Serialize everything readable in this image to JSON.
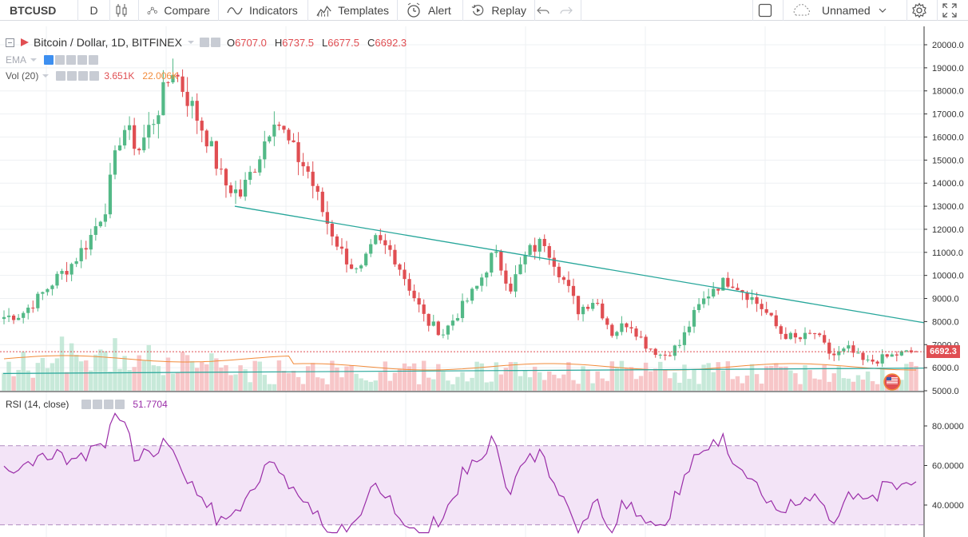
{
  "toolbar": {
    "symbol": "BTCUSD",
    "interval": "D",
    "compare_label": "Compare",
    "indicators_label": "Indicators",
    "templates_label": "Templates",
    "alert_label": "Alert",
    "replay_label": "Replay",
    "layout_name": "Unnamed"
  },
  "legend": {
    "symbol_title": "Bitcoin / Dollar, 1D, BITFINEX",
    "open_label": "O",
    "open": "6707.0",
    "high_label": "H",
    "high": "6737.5",
    "low_label": "L",
    "low": "6677.5",
    "close_label": "C",
    "close": "6692.3",
    "ema_label": "EMA",
    "vol_label": "Vol (20)",
    "vol_value_1": "3.651K",
    "vol_value_2": "22.006K"
  },
  "rsi": {
    "label": "RSI (14, close)",
    "value": "51.7704",
    "axis_labels": [
      "80.0000",
      "60.0000",
      "40.0000"
    ],
    "upper_band": 70,
    "lower_band": 30
  },
  "price_axis": {
    "labels": [
      "20000.0",
      "19000.0",
      "18000.0",
      "17000.0",
      "16000.0",
      "15000.0",
      "14000.0",
      "13000.0",
      "12000.0",
      "11000.0",
      "10000.0",
      "9000.0",
      "8000.0",
      "7000.0",
      "6000.0",
      "5000.0"
    ],
    "last_price": "6692.3"
  },
  "colors": {
    "up": "#53b987",
    "down": "#e04e52",
    "trendline": "#26a69a",
    "ema": "#f28b3a",
    "rsi_line": "#9a2da8",
    "rsi_band": "#f3e4f7",
    "last_price_line": "#e04e52"
  },
  "icons": {
    "chart_type": "candles-icon",
    "compare": "compare-icon",
    "indicators": "indicators-icon",
    "templates": "templates-icon",
    "alert": "alert-icon",
    "replay": "replay-icon",
    "undo": "undo-icon",
    "redo": "redo-icon",
    "fullscreen": "fullscreen-icon",
    "settings": "gear-icon",
    "cloud": "cloud-icon"
  },
  "chart_data": {
    "type": "candlestick",
    "ohlc_last": {
      "open": 6707.0,
      "high": 6737.5,
      "low": 6677.5,
      "close": 6692.3
    },
    "price_range": [
      5000,
      20000
    ],
    "approx_close_path": [
      8200,
      8300,
      9000,
      9800,
      10500,
      11500,
      13000,
      16500,
      15500,
      17000,
      19000,
      17500,
      16000,
      14000,
      13500,
      15000,
      17000,
      15500,
      14500,
      12500,
      11000,
      10000,
      11500,
      11000,
      9500,
      8000,
      7500,
      8500,
      9500,
      11000,
      9500,
      11000,
      11500,
      10000,
      8500,
      9000,
      7500,
      8000,
      7000,
      6500,
      7000,
      8500,
      9500,
      9800,
      9200,
      8500,
      7500,
      7200,
      7500,
      6500,
      6800,
      6200,
      6400,
      6600,
      6692
    ],
    "trendline_start": {
      "price": 13000
    },
    "trendline_end": {
      "price": 7950
    },
    "rsi_range": [
      20,
      90
    ],
    "rsi_last": 51.7704
  }
}
